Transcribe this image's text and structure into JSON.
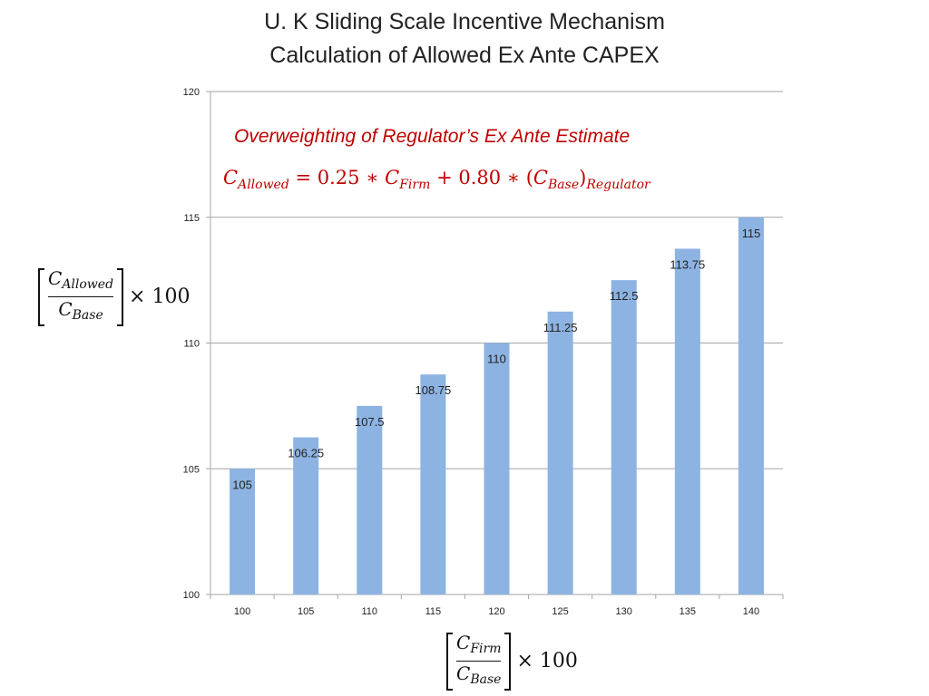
{
  "title_line1": "U. K Sliding Scale Incentive Mechanism",
  "title_line2": "Calculation of Allowed Ex Ante CAPEX",
  "annotation": {
    "text": "Overweighting of Regulator’s Ex Ante Estimate",
    "formula": {
      "c": "C",
      "allowed_sub": "Allowed",
      "eq": " = 0.25 ∗ ",
      "firm_sub": "Firm",
      "plus": " + 0.80 ∗ (",
      "base_sub": "Base",
      "close": ")",
      "regulator_sub": "Regulator"
    },
    "color": "#c00000"
  },
  "y_axis_label": {
    "num_c": "C",
    "num_sub": "Allowed",
    "den_c": "C",
    "den_sub": "Base",
    "times": "× 100"
  },
  "x_axis_label": {
    "num_c": "C",
    "num_sub": "Firm",
    "den_c": "C",
    "den_sub": "Base",
    "times": "× 100"
  },
  "chart_data": {
    "type": "bar",
    "categories": [
      "100",
      "105",
      "110",
      "115",
      "120",
      "125",
      "130",
      "135",
      "140"
    ],
    "values": [
      105,
      106.25,
      107.5,
      108.75,
      110,
      111.25,
      112.5,
      113.75,
      115
    ],
    "value_labels": [
      "105",
      "106.25",
      "107.5",
      "108.75",
      "110",
      "111.25",
      "112.5",
      "113.75",
      "115"
    ],
    "ylim": [
      100,
      120
    ],
    "yticks": [
      "100",
      "105",
      "110",
      "115",
      "120"
    ],
    "grid": true,
    "bar_color": "#8db3e2",
    "grid_color": "#a6a6a6"
  }
}
